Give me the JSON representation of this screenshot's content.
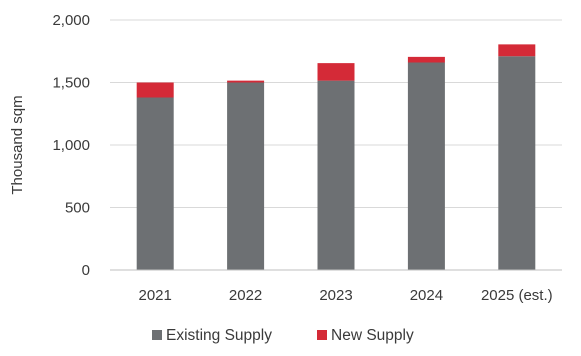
{
  "chart_data": {
    "type": "bar",
    "stacked": true,
    "categories": [
      "2021",
      "2022",
      "2023",
      "2024",
      "2025 (est.)"
    ],
    "series": [
      {
        "name": "Existing Supply",
        "values": [
          1380,
          1500,
          1515,
          1660,
          1710
        ],
        "color": "#6d7073"
      },
      {
        "name": "New Supply",
        "values": [
          120,
          15,
          140,
          45,
          95
        ],
        "color": "#d42a37"
      }
    ],
    "title": "",
    "xlabel": "",
    "ylabel": "Thousand sqm",
    "ylim": [
      0,
      2000
    ],
    "yticks": [
      0,
      500,
      1000,
      1500,
      2000
    ],
    "ytick_labels": [
      "0",
      "500",
      "1,000",
      "1,500",
      "2,000"
    ],
    "grid": true,
    "legend_position": "bottom"
  }
}
